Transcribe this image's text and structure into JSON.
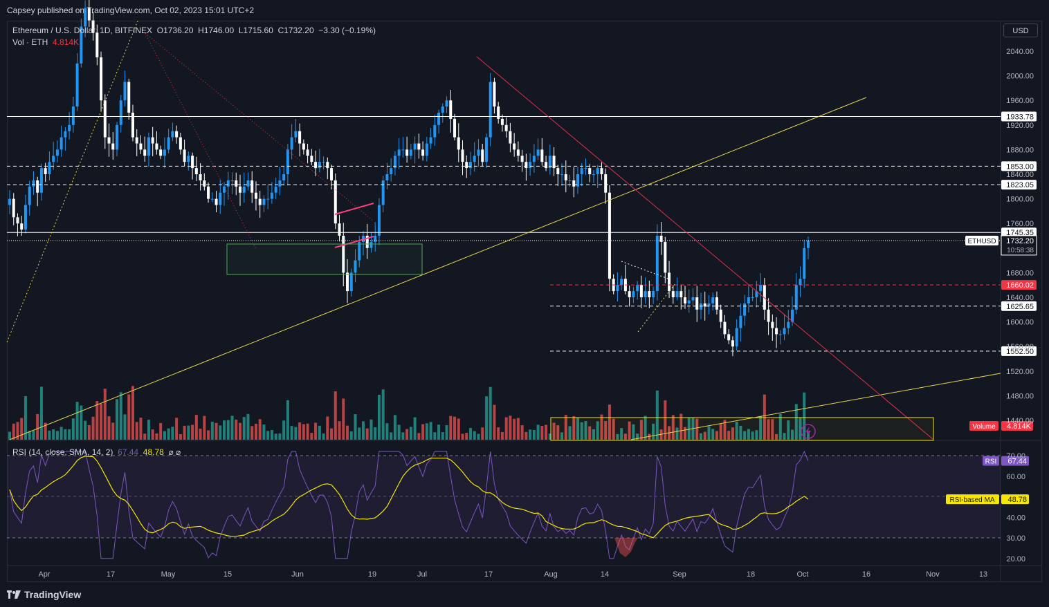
{
  "publisher": "Capsey published on TradingView.com, Oct 02, 2023 15:01 UTC+2",
  "legend": {
    "symbol": "Ethereum / U.S. Dollar, 1D, BITFINEX",
    "open": "O1736.20",
    "high": "H1746.00",
    "low": "L1715.60",
    "close": "C1732.20",
    "change": "−3.30 (−0.19%)",
    "vol_label": "Vol · ETH",
    "vol_value": "4.814K"
  },
  "rsi_legend": {
    "label": "RSI (14, close, SMA, 14, 2)",
    "rsi_value": "67.44",
    "ma_value": "48.78",
    "extra": "⌀ ⌀"
  },
  "currency_button": "USD",
  "footer_brand": "TradingView",
  "colors": {
    "bg": "#131722",
    "up": "#2196f3",
    "down": "#ffffff",
    "vol_up": "#26a69a",
    "vol_down": "#ef5350",
    "rsi_line": "#7e57c2",
    "rsi_ma": "#f7e600",
    "trend_yellow": "#e8d84a",
    "trend_red": "#e0304a",
    "box_green": "#4caf50",
    "box_yellow": "#f7e600",
    "tag_red": "#f23645"
  },
  "chart_data": [
    {
      "type": "candlestick",
      "title": "Ethereum / U.S. Dollar, 1D, BITFINEX",
      "price_axis_ticks": [
        "2040.00",
        "2000.00",
        "1960.00",
        "1920.00",
        "1880.00",
        "1840.00",
        "1800.00",
        "1760.00",
        "1680.00",
        "1640.00",
        "1600.00",
        "1560.00",
        "1520.00",
        "1480.00",
        "1440.00"
      ],
      "time_axis_labels": [
        "Apr",
        "17",
        "May",
        "15",
        "Jun",
        "19",
        "Jul",
        "17",
        "Aug",
        "14",
        "Sep",
        "18",
        "Oct",
        "16",
        "Nov",
        "13"
      ],
      "ylim": [
        1420,
        2060
      ],
      "horizontal_levels": [
        {
          "label": "1933.78",
          "style": "solid"
        },
        {
          "label": "1853.00",
          "style": "dashed"
        },
        {
          "label": "1823.05",
          "style": "dashed"
        },
        {
          "label": "1745.35",
          "style": "solid"
        },
        {
          "label": "1660.02",
          "style": "dashed-red"
        },
        {
          "label": "1625.65",
          "style": "dashed"
        },
        {
          "label": "1552.50",
          "style": "dashed"
        }
      ],
      "last_price": {
        "symbol": "ETHUSD",
        "price": "1732.20",
        "countdown": "10:58:38"
      },
      "volume_tag": {
        "label": "Volume",
        "value": "4.814K"
      },
      "closes": [
        1800,
        1770,
        1760,
        1750,
        1790,
        1820,
        1830,
        1810,
        1850,
        1840,
        1860,
        1870,
        1880,
        1900,
        1910,
        1920,
        1950,
        2020,
        2080,
        2110,
        2090,
        2070,
        2030,
        1960,
        1900,
        1890,
        1880,
        1920,
        1960,
        1990,
        1940,
        1900,
        1890,
        1880,
        1870,
        1900,
        1890,
        1880,
        1870,
        1880,
        1900,
        1910,
        1900,
        1880,
        1860,
        1870,
        1850,
        1840,
        1830,
        1820,
        1800,
        1800,
        1790,
        1810,
        1820,
        1830,
        1830,
        1820,
        1810,
        1820,
        1830,
        1810,
        1800,
        1790,
        1800,
        1800,
        1810,
        1820,
        1830,
        1840,
        1880,
        1900,
        1910,
        1890,
        1880,
        1870,
        1860,
        1850,
        1860,
        1860,
        1850,
        1830,
        1760,
        1740,
        1680,
        1650,
        1680,
        1700,
        1730,
        1740,
        1720,
        1730,
        1740,
        1790,
        1830,
        1840,
        1850,
        1870,
        1880,
        1880,
        1870,
        1880,
        1890,
        1880,
        1870,
        1890,
        1900,
        1920,
        1940,
        1950,
        1960,
        1930,
        1900,
        1880,
        1860,
        1850,
        1860,
        1870,
        1880,
        1860,
        1900,
        1990,
        1950,
        1930,
        1920,
        1910,
        1890,
        1880,
        1870,
        1860,
        1850,
        1860,
        1870,
        1880,
        1860,
        1850,
        1870,
        1850,
        1840,
        1840,
        1830,
        1830,
        1820,
        1840,
        1850,
        1850,
        1840,
        1840,
        1850,
        1840,
        1810,
        1670,
        1650,
        1660,
        1670,
        1650,
        1640,
        1650,
        1660,
        1640,
        1650,
        1640,
        1650,
        1740,
        1730,
        1680,
        1650,
        1640,
        1650,
        1640,
        1630,
        1635,
        1640,
        1620,
        1630,
        1625,
        1630,
        1640,
        1620,
        1600,
        1580,
        1570,
        1560,
        1590,
        1610,
        1630,
        1640,
        1640,
        1650,
        1660,
        1620,
        1600,
        1590,
        1580,
        1580,
        1590,
        1600,
        1620,
        1660,
        1670,
        1720,
        1732
      ],
      "rsi_axis_ticks": [
        "70.00",
        "60.00",
        "40.00",
        "30.00",
        "20.00"
      ],
      "rsi_current": 67.44,
      "rsi_ma_current": 48.78,
      "rsi_tag": "RSI",
      "rsi_ma_tag": "RSI-based MA"
    }
  ]
}
